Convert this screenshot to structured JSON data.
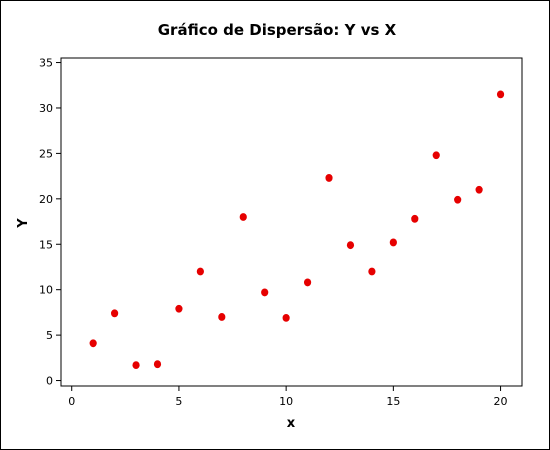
{
  "chart_data": {
    "type": "scatter",
    "title": "Gráfico de Dispersão: Y vs X",
    "xlabel": "x",
    "ylabel": "Y",
    "xlim": [
      -0.5,
      21
    ],
    "ylim": [
      -0.6,
      35.5
    ],
    "xticks": [
      0,
      5,
      10,
      15,
      20
    ],
    "yticks": [
      0,
      5,
      10,
      15,
      20,
      25,
      30,
      35
    ],
    "grid": false,
    "marker_color": "#e60000",
    "points": [
      {
        "x": 1,
        "y": 4.1
      },
      {
        "x": 2,
        "y": 7.4
      },
      {
        "x": 3,
        "y": 1.7
      },
      {
        "x": 4,
        "y": 1.8
      },
      {
        "x": 5,
        "y": 7.9
      },
      {
        "x": 6,
        "y": 12.0
      },
      {
        "x": 7,
        "y": 7.0
      },
      {
        "x": 8,
        "y": 18.0
      },
      {
        "x": 9,
        "y": 9.7
      },
      {
        "x": 10,
        "y": 6.9
      },
      {
        "x": 11,
        "y": 10.8
      },
      {
        "x": 12,
        "y": 22.3
      },
      {
        "x": 13,
        "y": 14.9
      },
      {
        "x": 14,
        "y": 12.0
      },
      {
        "x": 15,
        "y": 15.2
      },
      {
        "x": 16,
        "y": 17.8
      },
      {
        "x": 17,
        "y": 24.8
      },
      {
        "x": 18,
        "y": 19.9
      },
      {
        "x": 19,
        "y": 21.0
      },
      {
        "x": 20,
        "y": 31.5
      }
    ]
  }
}
